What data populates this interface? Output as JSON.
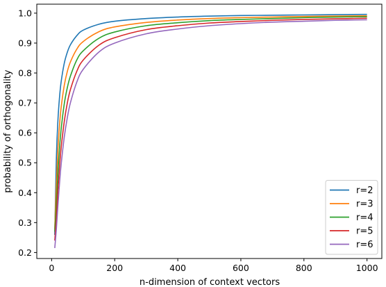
{
  "chart_data": {
    "type": "line",
    "title": "",
    "xlabel": "n-dimension of context vectors",
    "ylabel": "probability of orthogonality",
    "xlim": [
      -47,
      1047
    ],
    "ylim": [
      0.18,
      1.03
    ],
    "xticks": [
      0,
      200,
      400,
      600,
      800,
      1000
    ],
    "yticks": [
      0.2,
      0.3,
      0.4,
      0.5,
      0.6,
      0.7,
      0.8,
      0.9,
      1.0
    ],
    "xtick_labels": [
      "0",
      "200",
      "400",
      "600",
      "800",
      "1000"
    ],
    "ytick_labels": [
      "0.2",
      "0.3",
      "0.4",
      "0.5",
      "0.6",
      "0.7",
      "0.8",
      "0.9",
      "1.0"
    ],
    "grid": false,
    "legend_position": "bottom-right",
    "x": [
      10,
      15,
      20,
      25,
      30,
      40,
      50,
      60,
      80,
      100,
      150,
      200,
      300,
      400,
      500,
      600,
      700,
      800,
      900,
      1000
    ],
    "series": [
      {
        "name": "r=2",
        "color": "#1f77b4",
        "values": [
          0.259,
          0.514,
          0.642,
          0.718,
          0.769,
          0.832,
          0.87,
          0.895,
          0.925,
          0.943,
          0.963,
          0.973,
          0.982,
          0.987,
          0.99,
          0.992,
          0.993,
          0.994,
          0.995,
          0.996
        ]
      },
      {
        "name": "r=3",
        "color": "#ff7f0e",
        "values": [
          0.279,
          0.425,
          0.546,
          0.625,
          0.683,
          0.758,
          0.806,
          0.838,
          0.88,
          0.905,
          0.938,
          0.954,
          0.969,
          0.977,
          0.982,
          0.985,
          0.987,
          0.989,
          0.99,
          0.991
        ]
      },
      {
        "name": "r=4",
        "color": "#2ca02c",
        "values": [
          0.27,
          0.36,
          0.468,
          0.548,
          0.61,
          0.696,
          0.752,
          0.791,
          0.844,
          0.874,
          0.916,
          0.937,
          0.958,
          0.968,
          0.975,
          0.979,
          0.982,
          0.985,
          0.987,
          0.988
        ]
      },
      {
        "name": "r=5",
        "color": "#d62728",
        "values": [
          0.24,
          0.315,
          0.408,
          0.485,
          0.548,
          0.637,
          0.701,
          0.746,
          0.806,
          0.843,
          0.893,
          0.918,
          0.945,
          0.958,
          0.967,
          0.972,
          0.976,
          0.979,
          0.981,
          0.983
        ]
      },
      {
        "name": "r=6",
        "color": "#9467bd",
        "values": [
          0.215,
          0.278,
          0.358,
          0.43,
          0.492,
          0.585,
          0.652,
          0.702,
          0.77,
          0.812,
          0.87,
          0.9,
          0.931,
          0.947,
          0.958,
          0.965,
          0.97,
          0.973,
          0.976,
          0.978
        ]
      }
    ]
  }
}
